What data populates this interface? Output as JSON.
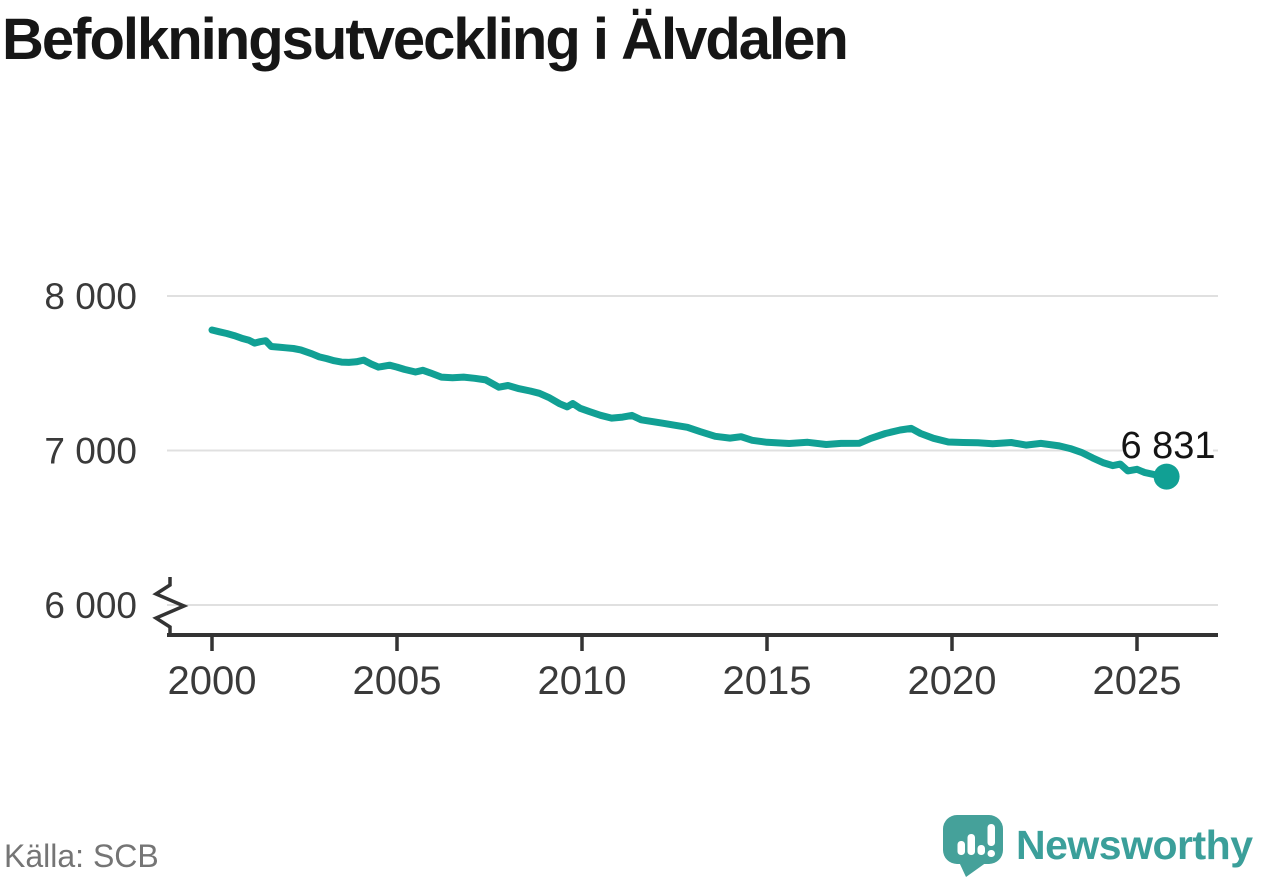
{
  "title": "Befolkningsutveckling i Älvdalen",
  "source_label": "Källa: SCB",
  "branding": {
    "name": "Newsworthy"
  },
  "colors": {
    "background": "#FFFFFF",
    "line": "#11A094",
    "grid": "#E0E0E0",
    "axis": "#333333",
    "tick_label": "#3A3A3A",
    "title": "#161616",
    "source": "#757575",
    "annotation": "#141414",
    "annotation_halo": "#FFFFFF",
    "logo_icon": "#45A19A",
    "logo_text": "#3B9F9A"
  },
  "chart_data": {
    "type": "line",
    "title": "Befolkningsutveckling i Älvdalen",
    "xlabel": "",
    "ylabel": "",
    "x_range": [
      2000,
      2025.8
    ],
    "ylim": [
      6000,
      8000
    ],
    "y_axis_break_below": 6000,
    "grid": "horizontal",
    "legend": "none",
    "yticks": [
      {
        "value": 8000,
        "label": "8 000"
      },
      {
        "value": 7000,
        "label": "7 000"
      },
      {
        "value": 6000,
        "label": "6 000"
      }
    ],
    "xticks": [
      {
        "value": 2000,
        "label": "2000"
      },
      {
        "value": 2005,
        "label": "2005"
      },
      {
        "value": 2010,
        "label": "2010"
      },
      {
        "value": 2015,
        "label": "2015"
      },
      {
        "value": 2020,
        "label": "2020"
      },
      {
        "value": 2025,
        "label": "2025"
      }
    ],
    "end_point": {
      "x": 2025.8,
      "value": 6831,
      "label": "6 831"
    },
    "series": [
      {
        "points": [
          [
            2000.0,
            7780
          ],
          [
            2000.2,
            7768
          ],
          [
            2000.4,
            7757
          ],
          [
            2000.6,
            7744
          ],
          [
            2000.8,
            7727
          ],
          [
            2001.0,
            7713
          ],
          [
            2001.15,
            7695
          ],
          [
            2001.3,
            7704
          ],
          [
            2001.45,
            7711
          ],
          [
            2001.6,
            7673
          ],
          [
            2001.8,
            7669
          ],
          [
            2002.0,
            7665
          ],
          [
            2002.2,
            7660
          ],
          [
            2002.4,
            7651
          ],
          [
            2002.7,
            7626
          ],
          [
            2002.9,
            7606
          ],
          [
            2003.1,
            7595
          ],
          [
            2003.3,
            7581
          ],
          [
            2003.5,
            7572
          ],
          [
            2003.7,
            7570
          ],
          [
            2003.9,
            7574
          ],
          [
            2004.1,
            7585
          ],
          [
            2004.3,
            7560
          ],
          [
            2004.5,
            7540
          ],
          [
            2004.8,
            7552
          ],
          [
            2005.0,
            7540
          ],
          [
            2005.2,
            7525
          ],
          [
            2005.5,
            7508
          ],
          [
            2005.7,
            7519
          ],
          [
            2005.9,
            7502
          ],
          [
            2006.2,
            7475
          ],
          [
            2006.5,
            7471
          ],
          [
            2006.8,
            7475
          ],
          [
            2007.1,
            7467
          ],
          [
            2007.4,
            7457
          ],
          [
            2007.6,
            7430
          ],
          [
            2007.75,
            7410
          ],
          [
            2008.0,
            7421
          ],
          [
            2008.3,
            7400
          ],
          [
            2008.6,
            7385
          ],
          [
            2008.85,
            7370
          ],
          [
            2009.1,
            7344
          ],
          [
            2009.4,
            7302
          ],
          [
            2009.6,
            7282
          ],
          [
            2009.75,
            7304
          ],
          [
            2009.95,
            7273
          ],
          [
            2010.2,
            7252
          ],
          [
            2010.5,
            7228
          ],
          [
            2010.8,
            7210
          ],
          [
            2011.1,
            7216
          ],
          [
            2011.35,
            7227
          ],
          [
            2011.6,
            7199
          ],
          [
            2011.9,
            7187
          ],
          [
            2012.2,
            7176
          ],
          [
            2012.5,
            7164
          ],
          [
            2012.85,
            7150
          ],
          [
            2013.2,
            7122
          ],
          [
            2013.6,
            7092
          ],
          [
            2014.0,
            7080
          ],
          [
            2014.3,
            7089
          ],
          [
            2014.6,
            7066
          ],
          [
            2015.0,
            7053
          ],
          [
            2015.6,
            7045
          ],
          [
            2016.1,
            7053
          ],
          [
            2016.6,
            7039
          ],
          [
            2017.0,
            7046
          ],
          [
            2017.5,
            7047
          ],
          [
            2017.8,
            7078
          ],
          [
            2018.2,
            7110
          ],
          [
            2018.6,
            7133
          ],
          [
            2018.9,
            7143
          ],
          [
            2019.15,
            7110
          ],
          [
            2019.5,
            7079
          ],
          [
            2019.9,
            7055
          ],
          [
            2020.3,
            7052
          ],
          [
            2020.7,
            7050
          ],
          [
            2021.1,
            7044
          ],
          [
            2021.6,
            7052
          ],
          [
            2022.0,
            7035
          ],
          [
            2022.4,
            7046
          ],
          [
            2022.9,
            7030
          ],
          [
            2023.2,
            7012
          ],
          [
            2023.5,
            6988
          ],
          [
            2023.8,
            6952
          ],
          [
            2024.1,
            6920
          ],
          [
            2024.35,
            6902
          ],
          [
            2024.55,
            6912
          ],
          [
            2024.75,
            6868
          ],
          [
            2025.0,
            6878
          ],
          [
            2025.2,
            6858
          ],
          [
            2025.45,
            6845
          ],
          [
            2025.65,
            6836
          ],
          [
            2025.8,
            6831
          ]
        ]
      }
    ]
  }
}
